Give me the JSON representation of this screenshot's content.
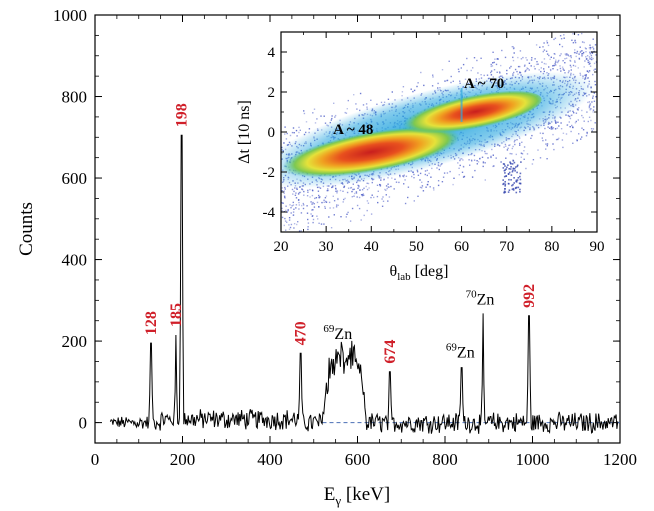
{
  "chart_data": [
    {
      "type": "line",
      "title": "",
      "xlabel": {
        "main": "E",
        "sub": "γ",
        "unit": " [keV]"
      },
      "ylabel": "Counts",
      "xlim": [
        0,
        1200
      ],
      "ylim": [
        -50,
        1000
      ],
      "xticks": [
        "0",
        "200",
        "400",
        "600",
        "800",
        "1000",
        "1200"
      ],
      "yticks": [
        "0",
        "200",
        "400",
        "600",
        "800",
        "1000"
      ],
      "baseline": {
        "style": "dashed",
        "color": "#4a6fb5",
        "x": [
          520,
          1200
        ],
        "y": 0
      },
      "peaks": [
        {
          "energy": 128,
          "label": "128",
          "height": 195,
          "color": "#d0202a"
        },
        {
          "energy": 185,
          "label": "185",
          "height": 215,
          "color": "#d0202a"
        },
        {
          "energy": 198,
          "label": "198",
          "height": 705,
          "color": "#d0202a"
        },
        {
          "energy": 470,
          "label": "470",
          "height": 170,
          "color": "#d0202a"
        },
        {
          "energy": 674,
          "label": "674",
          "height": 125,
          "color": "#d0202a"
        },
        {
          "energy": 838,
          "label": "",
          "height": 135,
          "color": "#000000"
        },
        {
          "energy": 887,
          "label": "",
          "height": 268,
          "color": "#000000"
        },
        {
          "energy": 992,
          "label": "992",
          "height": 262,
          "color": "#d0202a"
        }
      ],
      "broad_bumps": [
        {
          "from": 520,
          "to": 620,
          "height": 170
        }
      ],
      "annotations": [
        {
          "mass": "69",
          "element": "Zn",
          "x": 555,
          "y": 205
        },
        {
          "mass": "69",
          "element": "Zn",
          "x": 835,
          "y": 160
        },
        {
          "mass": "70",
          "element": "Zn",
          "x": 880,
          "y": 290
        }
      ]
    },
    {
      "type": "heatmap",
      "title": "",
      "xlabel": {
        "main": "θ",
        "sub": "lab",
        "unit": " [deg]"
      },
      "ylabel": "Δt [10 ns]",
      "xlim": [
        20,
        90
      ],
      "ylim": [
        -5,
        5
      ],
      "xticks": [
        "20",
        "30",
        "40",
        "50",
        "60",
        "70",
        "80",
        "90"
      ],
      "yticks": [
        "-4",
        "-2",
        "0",
        "2",
        "4"
      ],
      "colors": [
        "#4b5bc6",
        "#2fa9e0",
        "#3fbfa0",
        "#7ec850",
        "#e5e23a",
        "#f0a020",
        "#e8501e",
        "#c81e1e"
      ],
      "bands": [
        {
          "label": "A ~ 48",
          "x": [
            20,
            60
          ],
          "y": [
            -1.8,
            -0.2
          ]
        },
        {
          "label": "A ~ 70",
          "x": [
            45,
            78
          ],
          "y": [
            0.1,
            1.8
          ]
        }
      ],
      "region_labels": [
        {
          "text": "A ~ 48",
          "x": 36,
          "y": -0.1
        },
        {
          "text": "A ~ 70",
          "x": 65,
          "y": 2.2
        }
      ]
    }
  ]
}
